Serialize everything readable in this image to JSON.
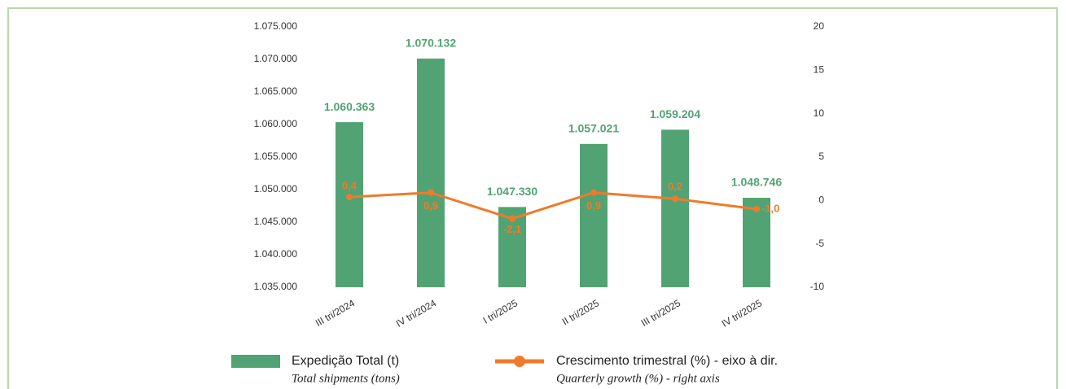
{
  "chart_data": {
    "type": "bar_line",
    "categories": [
      "III tri/2024",
      "IV tri/2024",
      "I tri/2025",
      "II tri/2025",
      "III tri/2025",
      "IV tri/2025"
    ],
    "series": [
      {
        "name": "Expedição Total (t)",
        "legend_subtitle": "Total shipments (tons)",
        "type": "bar",
        "color": "#52a373",
        "values": [
          1060363,
          1070132,
          1047330,
          1057021,
          1059204,
          1048746
        ],
        "value_labels": [
          "1.060.363",
          "1.070.132",
          "1.047.330",
          "1.057.021",
          "1.059.204",
          "1.048.746"
        ]
      },
      {
        "name": "Crescimento trimestral (%) - eixo à dir.",
        "legend_subtitle": "Quarterly growth (%) - right axis",
        "type": "line",
        "axis": "y2",
        "color": "#f07a2a",
        "values": [
          0.4,
          0.9,
          -2.1,
          0.9,
          0.2,
          -1.0
        ],
        "value_labels": [
          "0,4",
          "0,9",
          "-2,1",
          "0,9",
          "0,2",
          "-1,0"
        ]
      }
    ],
    "ylim": [
      1035000,
      1075000
    ],
    "yticks": [
      {
        "value": 1035000,
        "label": "1.035.000"
      },
      {
        "value": 1040000,
        "label": "1.040.000"
      },
      {
        "value": 1045000,
        "label": "1.045.000"
      },
      {
        "value": 1050000,
        "label": "1.050.000"
      },
      {
        "value": 1055000,
        "label": "1.055.000"
      },
      {
        "value": 1060000,
        "label": "1.060.000"
      },
      {
        "value": 1065000,
        "label": "1.065.000"
      },
      {
        "value": 1070000,
        "label": "1.070.000"
      },
      {
        "value": 1075000,
        "label": "1.075.000"
      }
    ],
    "y2lim": [
      -10,
      20
    ],
    "y2ticks": [
      -10,
      -5,
      0,
      5,
      10,
      15,
      20
    ],
    "grid": false
  }
}
